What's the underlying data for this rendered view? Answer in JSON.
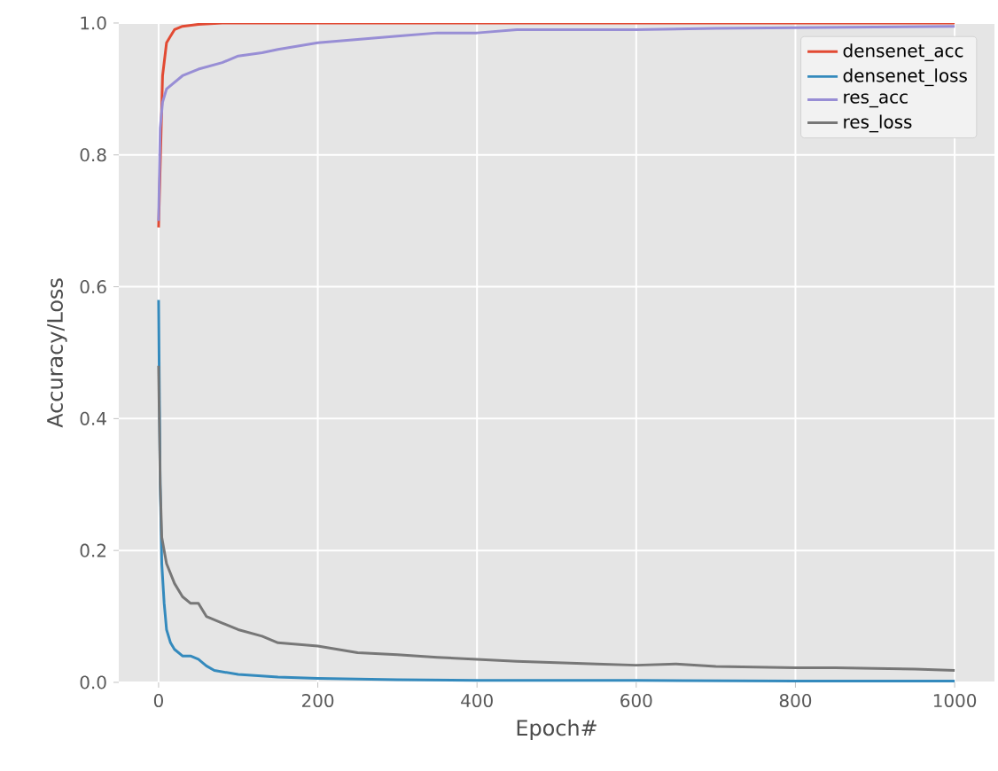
{
  "chart_data": {
    "type": "line",
    "xlabel": "Epoch#",
    "ylabel": "Accuracy/Loss",
    "xlim": [
      -50,
      1050
    ],
    "ylim": [
      0,
      1.0
    ],
    "xticks": [
      0,
      200,
      400,
      600,
      800,
      1000
    ],
    "yticks": [
      {
        "value": 0,
        "label": "0.0"
      },
      {
        "value": 0.2,
        "label": "0.2"
      },
      {
        "value": 0.4,
        "label": "0.4"
      },
      {
        "value": 0.6,
        "label": "0.6"
      },
      {
        "value": 0.8,
        "label": "0.8"
      },
      {
        "value": 1.0,
        "label": "1.0"
      }
    ],
    "grid": true,
    "legend": "top right",
    "series": [
      {
        "name": "densenet_acc",
        "color": "#e24a33",
        "x": [
          0,
          5,
          10,
          15,
          20,
          30,
          50,
          80,
          100,
          200,
          400,
          600,
          800,
          1000
        ],
        "values": [
          0.69,
          0.92,
          0.97,
          0.98,
          0.99,
          0.995,
          0.998,
          1.0,
          1.0,
          1.0,
          1.0,
          1.0,
          1.0,
          1.0
        ]
      },
      {
        "name": "densenet_loss",
        "color": "#348abd",
        "x": [
          0,
          2,
          4,
          7,
          10,
          15,
          20,
          30,
          40,
          50,
          60,
          70,
          100,
          150,
          200,
          300,
          400,
          600,
          800,
          1000
        ],
        "values": [
          0.58,
          0.3,
          0.18,
          0.12,
          0.08,
          0.06,
          0.05,
          0.04,
          0.04,
          0.035,
          0.025,
          0.018,
          0.012,
          0.008,
          0.006,
          0.004,
          0.003,
          0.003,
          0.002,
          0.002
        ]
      },
      {
        "name": "res_acc",
        "color": "#988ed5",
        "x": [
          0,
          2,
          5,
          10,
          20,
          30,
          50,
          80,
          100,
          130,
          150,
          200,
          250,
          300,
          350,
          400,
          450,
          500,
          600,
          700,
          800,
          900,
          1000
        ],
        "values": [
          0.7,
          0.84,
          0.88,
          0.9,
          0.91,
          0.92,
          0.93,
          0.94,
          0.95,
          0.955,
          0.96,
          0.97,
          0.975,
          0.98,
          0.985,
          0.985,
          0.99,
          0.99,
          0.99,
          0.992,
          0.993,
          0.994,
          0.995
        ]
      },
      {
        "name": "res_loss",
        "color": "#777777",
        "x": [
          0,
          2,
          4,
          7,
          10,
          20,
          30,
          40,
          50,
          60,
          80,
          100,
          130,
          150,
          200,
          250,
          300,
          350,
          400,
          450,
          500,
          550,
          600,
          650,
          700,
          750,
          800,
          850,
          900,
          950,
          1000
        ],
        "values": [
          0.48,
          0.3,
          0.22,
          0.2,
          0.18,
          0.15,
          0.13,
          0.12,
          0.12,
          0.1,
          0.09,
          0.08,
          0.07,
          0.06,
          0.055,
          0.045,
          0.042,
          0.038,
          0.035,
          0.032,
          0.03,
          0.028,
          0.026,
          0.028,
          0.024,
          0.023,
          0.022,
          0.022,
          0.021,
          0.02,
          0.018
        ]
      }
    ]
  }
}
